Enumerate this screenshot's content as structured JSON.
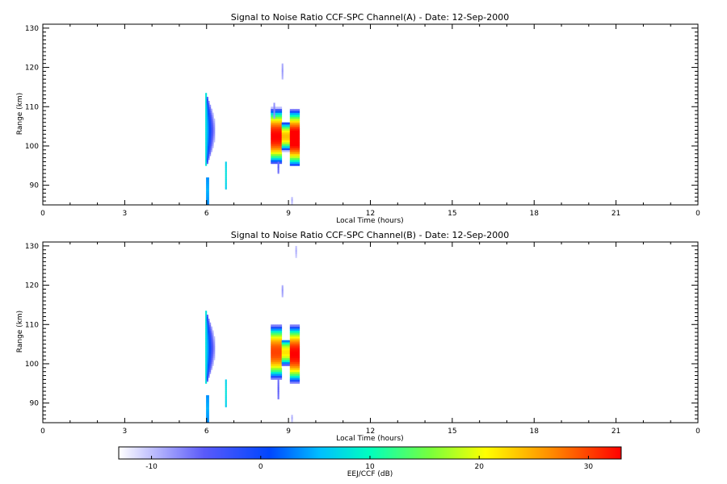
{
  "chart_data": [
    {
      "type": "heatmap",
      "title": "Signal to Noise Ratio CCF-SPC Channel(A) - Date: 12-Sep-2000",
      "xlabel": "Local Time (hours)",
      "ylabel": "Range (km)",
      "xlim": [
        0,
        24
      ],
      "ylim": [
        85,
        131
      ],
      "xticks": [
        "0",
        "3",
        "6",
        "9",
        "12",
        "15",
        "18",
        "21",
        "0"
      ],
      "yticks": [
        90,
        100,
        110,
        120,
        130
      ],
      "features": [
        {
          "kind": "bulge",
          "t0": 5.95,
          "t1": 6.3,
          "ylo": 95,
          "yhi": 114,
          "center": 104,
          "max_db": 8
        },
        {
          "kind": "patch",
          "t0": 8.35,
          "t1": 8.75,
          "ylo": 95.5,
          "yhi": 110,
          "center": 102.5,
          "max_db": 33
        },
        {
          "kind": "patch",
          "t0": 8.75,
          "t1": 9.05,
          "ylo": 98.5,
          "yhi": 106,
          "center": 102.5,
          "max_db": 24
        },
        {
          "kind": "patch",
          "t0": 9.05,
          "t1": 9.4,
          "ylo": 95,
          "yhi": 110,
          "center": 102,
          "max_db": 35
        },
        {
          "kind": "streak",
          "t0": 5.98,
          "t1": 6.05,
          "ylo": 85,
          "yhi": 92,
          "max_db": 5
        },
        {
          "kind": "streak",
          "t0": 6.68,
          "t1": 6.72,
          "ylo": 89,
          "yhi": 96,
          "max_db": 8
        },
        {
          "kind": "streak",
          "t0": 8.6,
          "t1": 8.64,
          "ylo": 93,
          "yhi": 96,
          "max_db": -5
        },
        {
          "kind": "streak",
          "t0": 8.75,
          "t1": 8.78,
          "ylo": 117,
          "yhi": 121,
          "max_db": -8
        },
        {
          "kind": "streak",
          "t0": 8.45,
          "t1": 8.48,
          "ylo": 107,
          "yhi": 111,
          "max_db": -7
        },
        {
          "kind": "streak",
          "t0": 9.1,
          "t1": 9.13,
          "ylo": 85,
          "yhi": 87,
          "max_db": -9
        }
      ]
    },
    {
      "type": "heatmap",
      "title": "Signal to Noise Ratio CCF-SPC Channel(B) - Date: 12-Sep-2000",
      "xlabel": "Local Time (hours)",
      "ylabel": "Range (km)",
      "xlim": [
        0,
        24
      ],
      "ylim": [
        85,
        131
      ],
      "xticks": [
        "0",
        "3",
        "6",
        "9",
        "12",
        "15",
        "18",
        "21",
        "0"
      ],
      "yticks": [
        90,
        100,
        110,
        120,
        130
      ],
      "features": [
        {
          "kind": "bulge",
          "t0": 5.95,
          "t1": 6.3,
          "ylo": 95,
          "yhi": 114,
          "center": 104,
          "max_db": 8
        },
        {
          "kind": "patch",
          "t0": 8.35,
          "t1": 8.75,
          "ylo": 96,
          "yhi": 110,
          "center": 103,
          "max_db": 30
        },
        {
          "kind": "patch",
          "t0": 8.75,
          "t1": 9.05,
          "ylo": 99,
          "yhi": 106,
          "center": 103,
          "max_db": 22
        },
        {
          "kind": "patch",
          "t0": 9.05,
          "t1": 9.4,
          "ylo": 95,
          "yhi": 110,
          "center": 102.5,
          "max_db": 33
        },
        {
          "kind": "streak",
          "t0": 5.98,
          "t1": 6.05,
          "ylo": 85,
          "yhi": 92,
          "max_db": 5
        },
        {
          "kind": "streak",
          "t0": 6.68,
          "t1": 6.72,
          "ylo": 89,
          "yhi": 96,
          "max_db": 8
        },
        {
          "kind": "streak",
          "t0": 8.6,
          "t1": 8.64,
          "ylo": 91,
          "yhi": 96,
          "max_db": -5
        },
        {
          "kind": "streak",
          "t0": 8.75,
          "t1": 8.78,
          "ylo": 117,
          "yhi": 120,
          "max_db": -8
        },
        {
          "kind": "streak",
          "t0": 9.25,
          "t1": 9.28,
          "ylo": 127,
          "yhi": 130,
          "max_db": -9
        },
        {
          "kind": "streak",
          "t0": 9.1,
          "t1": 9.13,
          "ylo": 85,
          "yhi": 87,
          "max_db": -9
        }
      ]
    }
  ],
  "colorbar": {
    "label": "EEJ/CCF (dB)",
    "range": [
      -13,
      33
    ],
    "ticks": [
      "-10",
      "0",
      "10",
      "20",
      "30"
    ],
    "tick_values": [
      -10,
      0,
      10,
      20,
      30
    ]
  }
}
